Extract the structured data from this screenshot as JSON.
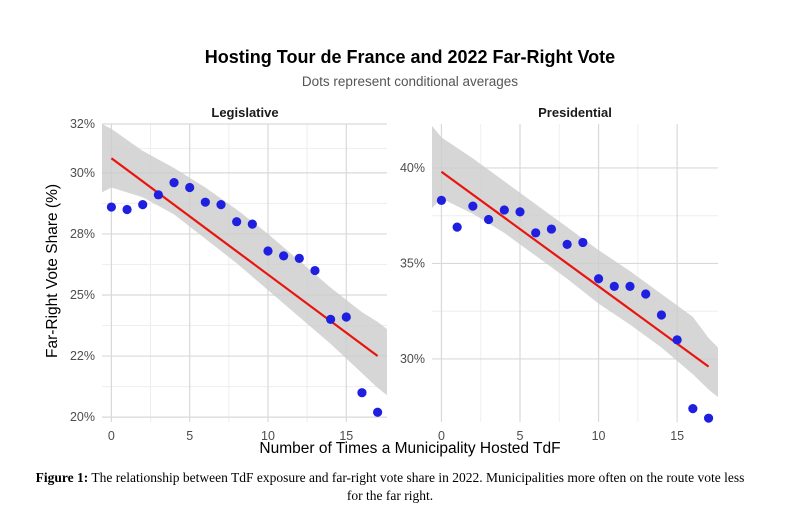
{
  "chart_data": [
    {
      "type": "scatter",
      "panel": "Legislative",
      "title": "Hosting Tour de France and 2022 Far-Right Vote",
      "subtitle": "Dots represent conditional averages",
      "xlabel": "Number of Times a Municipality Hosted TdF",
      "ylabel": "Far-Right Vote Share (%)",
      "xlim": [
        -0.6,
        17.6
      ],
      "ylim": [
        19.8,
        32.0
      ],
      "x_ticks": [
        0,
        5,
        10,
        15
      ],
      "y_ticks": [
        20,
        22.5,
        25,
        27.5,
        30,
        32
      ],
      "y_tick_labels": [
        "20%",
        "22%",
        "25%",
        "28%",
        "30%",
        "32%"
      ],
      "grid": true,
      "points": {
        "x": [
          0,
          1,
          2,
          3,
          4,
          5,
          6,
          7,
          8,
          9,
          10,
          11,
          12,
          13,
          14,
          15,
          16,
          17
        ],
        "y": [
          28.6,
          28.5,
          28.7,
          29.1,
          29.6,
          29.4,
          28.8,
          28.7,
          28.0,
          27.9,
          26.8,
          26.6,
          26.5,
          26.0,
          24.0,
          24.1,
          21.0,
          20.2
        ]
      },
      "fit_line": {
        "x": [
          0,
          17
        ],
        "y": [
          30.6,
          22.5
        ]
      },
      "confidence_band": {
        "x": [
          -0.6,
          0,
          2,
          4,
          6,
          8,
          10,
          12,
          14,
          16,
          17,
          17.6
        ],
        "lower": [
          29.2,
          29.4,
          29.0,
          28.3,
          27.3,
          26.3,
          25.2,
          24.1,
          23.0,
          21.8,
          21.2,
          20.9
        ],
        "upper": [
          32.0,
          31.8,
          30.9,
          30.2,
          29.4,
          28.5,
          27.5,
          26.4,
          25.3,
          24.3,
          23.9,
          23.6
        ]
      },
      "point_color": "#1f1fe0",
      "line_color": "#e8150e",
      "band_color": "#cccccc"
    },
    {
      "type": "scatter",
      "panel": "Presidential",
      "xlim": [
        -0.6,
        17.6
      ],
      "ylim": [
        26.7,
        42.3
      ],
      "x_ticks": [
        0,
        5,
        10,
        15
      ],
      "y_ticks": [
        30,
        35,
        40
      ],
      "y_tick_labels": [
        "30%",
        "35%",
        "40%"
      ],
      "grid": true,
      "points": {
        "x": [
          0,
          1,
          2,
          3,
          4,
          5,
          6,
          7,
          8,
          9,
          10,
          11,
          12,
          13,
          14,
          15,
          16,
          17
        ],
        "y": [
          38.3,
          36.9,
          38.0,
          37.3,
          37.8,
          37.7,
          36.6,
          36.8,
          36.0,
          36.1,
          34.2,
          33.8,
          33.8,
          33.4,
          32.3,
          31.0,
          27.4,
          26.9
        ]
      },
      "fit_line": {
        "x": [
          0,
          17
        ],
        "y": [
          39.8,
          29.6
        ]
      },
      "confidence_band": {
        "x": [
          -0.6,
          0,
          2,
          4,
          6,
          8,
          10,
          12,
          14,
          16,
          17,
          17.6
        ],
        "lower": [
          37.9,
          38.4,
          37.6,
          36.6,
          35.4,
          34.2,
          32.9,
          31.8,
          30.6,
          29.2,
          28.4,
          28.0
        ],
        "upper": [
          42.2,
          41.6,
          40.5,
          39.3,
          38.1,
          36.9,
          35.7,
          34.6,
          33.4,
          32.2,
          31.1,
          30.6
        ]
      },
      "point_color": "#1f1fe0",
      "line_color": "#e8150e",
      "band_color": "#cccccc"
    }
  ],
  "caption": {
    "label": "Figure 1:",
    "text": "The relationship between TdF exposure and far-right vote share in 2022. Municipalities more often on the route vote less for the far right."
  }
}
